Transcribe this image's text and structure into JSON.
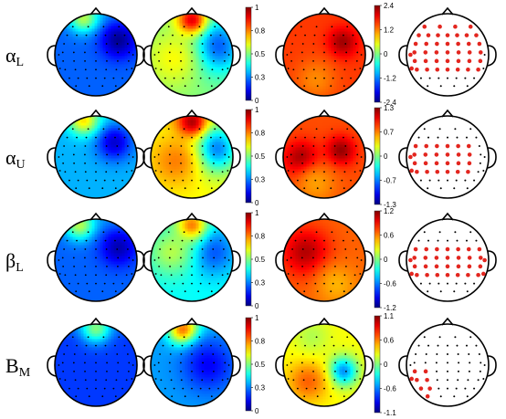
{
  "rows": [
    {
      "label_main": "α",
      "label_sub": "L",
      "maps": [
        {
          "type": "power",
          "base": 0.22,
          "cmap": "jet",
          "blobs": [
            {
              "dx": 0.55,
              "dy": -0.35,
              "v": 0.02,
              "s": 0.3
            },
            {
              "dx": -0.3,
              "dy": -0.9,
              "v": 0.55,
              "s": 0.25
            }
          ]
        },
        {
          "type": "power",
          "base": 0.5,
          "cmap": "jet",
          "blobs": [
            {
              "dx": 0.55,
              "dy": -0.2,
              "v": 0.18,
              "s": 0.45
            },
            {
              "dx": -0.45,
              "dy": 0.1,
              "v": 0.62,
              "s": 0.5
            },
            {
              "dx": 0.0,
              "dy": -0.85,
              "v": 0.9,
              "s": 0.25
            }
          ]
        },
        {
          "type": "diff",
          "base": 0.82,
          "cmap": "jet",
          "blobs": [
            {
              "dx": 0.45,
              "dy": -0.3,
              "v": 0.97,
              "s": 0.25
            },
            {
              "dx": -0.2,
              "dy": 0.6,
              "v": 0.74,
              "s": 0.35
            }
          ]
        },
        {
          "type": "electrodes",
          "electrodes": "rows_all"
        }
      ],
      "bar1": {
        "ticks": [
          "1",
          "0.8",
          "0.5",
          "0.3",
          "0"
        ]
      },
      "bar2": {
        "ticks": [
          "2.4",
          "1.2",
          "0",
          "-1.2",
          "-2.4"
        ]
      }
    },
    {
      "label_main": "α",
      "label_sub": "U",
      "maps": [
        {
          "type": "power",
          "base": 0.3,
          "cmap": "jet",
          "blobs": [
            {
              "dx": 0.45,
              "dy": -0.35,
              "v": 0.08,
              "s": 0.3
            },
            {
              "dx": -0.3,
              "dy": -0.9,
              "v": 0.65,
              "s": 0.25
            }
          ]
        },
        {
          "type": "power",
          "base": 0.62,
          "cmap": "jet",
          "blobs": [
            {
              "dx": 0.55,
              "dy": -0.2,
              "v": 0.22,
              "s": 0.4
            },
            {
              "dx": -0.4,
              "dy": 0.1,
              "v": 0.75,
              "s": 0.45
            },
            {
              "dx": 0.0,
              "dy": -0.85,
              "v": 0.95,
              "s": 0.25
            }
          ]
        },
        {
          "type": "diff",
          "base": 0.8,
          "cmap": "jet",
          "blobs": [
            {
              "dx": 0.4,
              "dy": -0.15,
              "v": 0.98,
              "s": 0.25
            },
            {
              "dx": -0.55,
              "dy": 0.05,
              "v": 0.98,
              "s": 0.3
            },
            {
              "dx": -0.2,
              "dy": 0.65,
              "v": 0.72,
              "s": 0.35
            }
          ]
        },
        {
          "type": "electrodes",
          "electrodes": "rows_mid"
        }
      ],
      "bar1": {
        "ticks": [
          "1",
          "0.8",
          "0.5",
          "0.3",
          "0"
        ]
      },
      "bar2": {
        "ticks": [
          "1.3",
          "0.7",
          "0",
          "-0.7",
          "-1.3"
        ]
      }
    },
    {
      "label_main": "β",
      "label_sub": "L",
      "maps": [
        {
          "type": "power",
          "base": 0.22,
          "cmap": "jet",
          "blobs": [
            {
              "dx": 0.55,
              "dy": -0.3,
              "v": 0.05,
              "s": 0.3
            },
            {
              "dx": -0.4,
              "dy": -0.85,
              "v": 0.55,
              "s": 0.25
            }
          ]
        },
        {
          "type": "power",
          "base": 0.38,
          "cmap": "jet",
          "blobs": [
            {
              "dx": 0.5,
              "dy": -0.2,
              "v": 0.2,
              "s": 0.4
            },
            {
              "dx": -0.5,
              "dy": -0.2,
              "v": 0.55,
              "s": 0.4
            },
            {
              "dx": 0.0,
              "dy": -0.85,
              "v": 0.75,
              "s": 0.25
            }
          ]
        },
        {
          "type": "diff",
          "base": 0.78,
          "cmap": "jet",
          "blobs": [
            {
              "dx": -0.45,
              "dy": -0.2,
              "v": 0.95,
              "s": 0.4
            },
            {
              "dx": 0.3,
              "dy": 0.6,
              "v": 0.7,
              "s": 0.35
            }
          ]
        },
        {
          "type": "electrodes",
          "electrodes": "rows_beta"
        }
      ],
      "bar1": {
        "ticks": [
          "1",
          "0.8",
          "0.5",
          "0.3",
          "0"
        ]
      },
      "bar2": {
        "ticks": [
          "1.2",
          "0.6",
          "0",
          "-0.6",
          "-1.2"
        ]
      }
    },
    {
      "label_main": "B",
      "label_sub": "M",
      "maps": [
        {
          "type": "power",
          "base": 0.18,
          "cmap": "jet",
          "blobs": [
            {
              "dx": 0.0,
              "dy": -0.9,
              "v": 0.5,
              "s": 0.25
            }
          ]
        },
        {
          "type": "power",
          "base": 0.28,
          "cmap": "jet",
          "blobs": [
            {
              "dx": -0.2,
              "dy": -0.85,
              "v": 0.8,
              "s": 0.25
            },
            {
              "dx": 0.4,
              "dy": 0.0,
              "v": 0.12,
              "s": 0.45
            }
          ]
        },
        {
          "type": "diff",
          "base": 0.62,
          "cmap": "jet",
          "blobs": [
            {
              "dx": 0.45,
              "dy": 0.15,
              "v": 0.25,
              "s": 0.25
            },
            {
              "dx": -0.4,
              "dy": 0.4,
              "v": 0.78,
              "s": 0.35
            },
            {
              "dx": -0.3,
              "dy": -0.7,
              "v": 0.55,
              "s": 0.3
            }
          ]
        },
        {
          "type": "electrodes",
          "electrodes": "rows_bm"
        }
      ],
      "bar1": {
        "ticks": [
          "1",
          "0.8",
          "0.5",
          "0.3",
          "0"
        ]
      },
      "bar2": {
        "ticks": [
          "1.1",
          "0.6",
          "0",
          "-0.6",
          "-1.1"
        ]
      }
    }
  ]
}
